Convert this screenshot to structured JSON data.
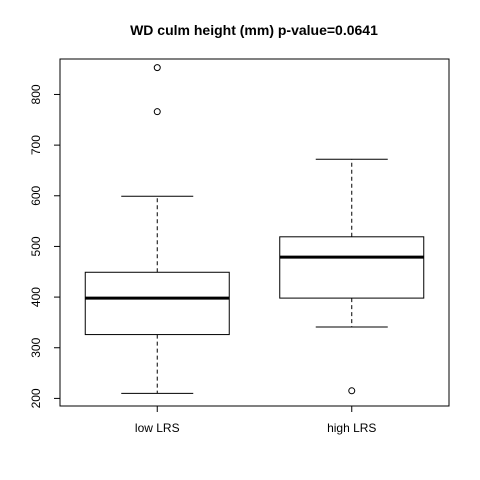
{
  "chart_data": {
    "type": "boxplot",
    "title": "WD culm height (mm) p-value=0.0641",
    "xlabel": "",
    "ylabel": "",
    "ylim": [
      185,
      870
    ],
    "yticks": [
      200,
      300,
      400,
      500,
      600,
      700,
      800
    ],
    "grid": false,
    "series": [
      {
        "category": "low LRS",
        "whisker_low": 210,
        "q1": 326,
        "median": 398,
        "q3": 449,
        "whisker_high": 599,
        "outliers": [
          766,
          853
        ]
      },
      {
        "category": "high LRS",
        "whisker_low": 341,
        "q1": 398,
        "median": 479,
        "q3": 519,
        "whisker_high": 672,
        "outliers": [
          215
        ]
      }
    ]
  }
}
